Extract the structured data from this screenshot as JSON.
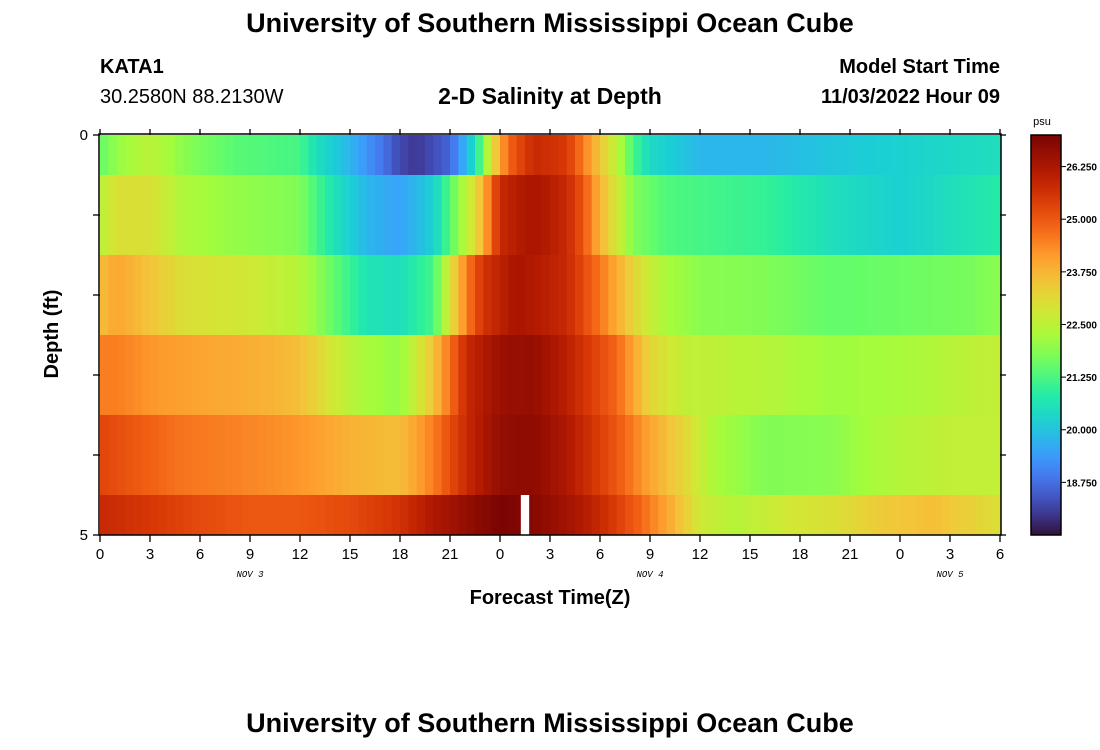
{
  "header": {
    "title": "University of Southern Mississippi Ocean Cube",
    "station_id": "KATA1",
    "station_coords": "30.2580N  88.2130W",
    "plot_title": "2-D Salinity at Depth",
    "model_start_label": "Model Start Time",
    "model_start_value": "11/03/2022 Hour 09"
  },
  "footer": {
    "title": "University of Southern Mississippi Ocean Cube"
  },
  "chart_data": {
    "type": "heatmap",
    "xlabel": "Forecast Time(Z)",
    "ylabel": "Depth (ft)",
    "x_ticks": [
      "0",
      "3",
      "6",
      "9",
      "12",
      "15",
      "18",
      "21",
      "0",
      "3",
      "6",
      "9",
      "12",
      "15",
      "18",
      "21",
      "0",
      "3",
      "6"
    ],
    "y_ticks": [
      "0",
      "5"
    ],
    "date_labels": [
      {
        "label": "NOV 3",
        "hour": 9
      },
      {
        "label": "NOV 4",
        "hour": 33
      },
      {
        "label": "NOV 5",
        "hour": 51
      }
    ],
    "x_range_hours": [
      0,
      54
    ],
    "depth_range_ft": [
      0,
      5
    ],
    "colorbar": {
      "unit": "psu",
      "min": 17.5,
      "max": 27.0,
      "ticks": [
        "18.750",
        "20.000",
        "21.250",
        "22.500",
        "23.750",
        "25.000",
        "26.250"
      ],
      "tick_values": [
        18.75,
        20.0,
        21.25,
        22.5,
        23.75,
        25.0,
        26.25
      ]
    },
    "layers": [
      {
        "depth_top": 0.0,
        "depth_bottom": 0.5,
        "anchors": [
          [
            0,
            21.5
          ],
          [
            1,
            22.0
          ],
          [
            3,
            22.5
          ],
          [
            5,
            21.9
          ],
          [
            8,
            21.4
          ],
          [
            12,
            21.2
          ],
          [
            13,
            20.5
          ],
          [
            15,
            19.8
          ],
          [
            17,
            18.8
          ],
          [
            18,
            18.2
          ],
          [
            19,
            18.0
          ],
          [
            21,
            18.6
          ],
          [
            22.5,
            20.5
          ],
          [
            23.5,
            23.0
          ],
          [
            24.5,
            24.8
          ],
          [
            26,
            25.8
          ],
          [
            28,
            25.5
          ],
          [
            29,
            24.5
          ],
          [
            30,
            23.5
          ],
          [
            31,
            22.5
          ],
          [
            32,
            21.2
          ],
          [
            33,
            20.4
          ],
          [
            36,
            19.8
          ],
          [
            40,
            19.8
          ],
          [
            45,
            20.1
          ],
          [
            50,
            20.3
          ],
          [
            54,
            20.5
          ]
        ]
      },
      {
        "depth_top": 0.5,
        "depth_bottom": 1.5,
        "anchors": [
          [
            0,
            22.4
          ],
          [
            1,
            23.0
          ],
          [
            3,
            23.0
          ],
          [
            5,
            22.3
          ],
          [
            8,
            22.0
          ],
          [
            12,
            21.8
          ],
          [
            14,
            20.6
          ],
          [
            16,
            19.8
          ],
          [
            18,
            19.5
          ],
          [
            20,
            20.2
          ],
          [
            22,
            22.5
          ],
          [
            23,
            23.8
          ],
          [
            24,
            25.8
          ],
          [
            26,
            26.3
          ],
          [
            28,
            25.8
          ],
          [
            29,
            25.0
          ],
          [
            30,
            23.8
          ],
          [
            31,
            22.8
          ],
          [
            32,
            21.8
          ],
          [
            34,
            21.3
          ],
          [
            40,
            21.0
          ],
          [
            44,
            20.5
          ],
          [
            48,
            20.2
          ],
          [
            52,
            20.6
          ],
          [
            54,
            20.8
          ]
        ]
      },
      {
        "depth_top": 1.5,
        "depth_bottom": 2.5,
        "anchors": [
          [
            0,
            23.6
          ],
          [
            1,
            24.0
          ],
          [
            3,
            23.5
          ],
          [
            5,
            23.0
          ],
          [
            9,
            22.8
          ],
          [
            12,
            22.4
          ],
          [
            14,
            21.5
          ],
          [
            16,
            20.6
          ],
          [
            18,
            20.5
          ],
          [
            20,
            21.2
          ],
          [
            22,
            24.5
          ],
          [
            23,
            25.6
          ],
          [
            25,
            26.3
          ],
          [
            28,
            25.8
          ],
          [
            30,
            24.6
          ],
          [
            32,
            23.2
          ],
          [
            34,
            22.2
          ],
          [
            36,
            21.9
          ],
          [
            40,
            21.8
          ],
          [
            44,
            21.5
          ],
          [
            48,
            21.6
          ],
          [
            52,
            21.7
          ],
          [
            54,
            21.9
          ]
        ]
      },
      {
        "depth_top": 2.5,
        "depth_bottom": 3.5,
        "anchors": [
          [
            0,
            24.5
          ],
          [
            1,
            24.5
          ],
          [
            3,
            24.2
          ],
          [
            6,
            24.0
          ],
          [
            10,
            23.8
          ],
          [
            12,
            23.6
          ],
          [
            14,
            22.8
          ],
          [
            16,
            22.2
          ],
          [
            18,
            22.0
          ],
          [
            20,
            23.5
          ],
          [
            22,
            25.8
          ],
          [
            24,
            26.5
          ],
          [
            26,
            26.6
          ],
          [
            28,
            26.0
          ],
          [
            31,
            24.8
          ],
          [
            33,
            23.2
          ],
          [
            35,
            22.6
          ],
          [
            40,
            22.4
          ],
          [
            44,
            22.1
          ],
          [
            48,
            22.2
          ],
          [
            52,
            22.5
          ],
          [
            54,
            22.6
          ]
        ]
      },
      {
        "depth_top": 3.5,
        "depth_bottom": 4.5,
        "anchors": [
          [
            0,
            25.3
          ],
          [
            2,
            25.0
          ],
          [
            5,
            24.6
          ],
          [
            9,
            24.4
          ],
          [
            12,
            24.2
          ],
          [
            15,
            23.8
          ],
          [
            18,
            23.6
          ],
          [
            20,
            24.5
          ],
          [
            22,
            25.8
          ],
          [
            24,
            26.6
          ],
          [
            26,
            26.7
          ],
          [
            28,
            26.2
          ],
          [
            31,
            25.0
          ],
          [
            33,
            24.0
          ],
          [
            35,
            23.2
          ],
          [
            37,
            22.2
          ],
          [
            40,
            21.8
          ],
          [
            44,
            21.9
          ],
          [
            47,
            22.3
          ],
          [
            51,
            22.6
          ],
          [
            54,
            22.6
          ]
        ]
      },
      {
        "depth_top": 4.5,
        "depth_bottom": 5.0,
        "anchors": [
          [
            0,
            25.8
          ],
          [
            3,
            25.5
          ],
          [
            6,
            25.2
          ],
          [
            9,
            25.0
          ],
          [
            12,
            25.0
          ],
          [
            15,
            25.2
          ],
          [
            18,
            25.6
          ],
          [
            20,
            26.2
          ],
          [
            22,
            26.6
          ],
          [
            24,
            27.0
          ],
          [
            26,
            26.8
          ],
          [
            28,
            26.4
          ],
          [
            30,
            25.8
          ],
          [
            32,
            25.0
          ],
          [
            34,
            24.0
          ],
          [
            36,
            22.8
          ],
          [
            38,
            22.4
          ],
          [
            41,
            22.8
          ],
          [
            44,
            23.0
          ],
          [
            47,
            23.4
          ],
          [
            50,
            23.6
          ],
          [
            52,
            23.3
          ],
          [
            54,
            23.0
          ]
        ]
      }
    ],
    "gap": {
      "hour_start": 25.25,
      "hour_end": 25.75,
      "depth_top": 4.5,
      "depth_bottom": 5.0
    }
  }
}
